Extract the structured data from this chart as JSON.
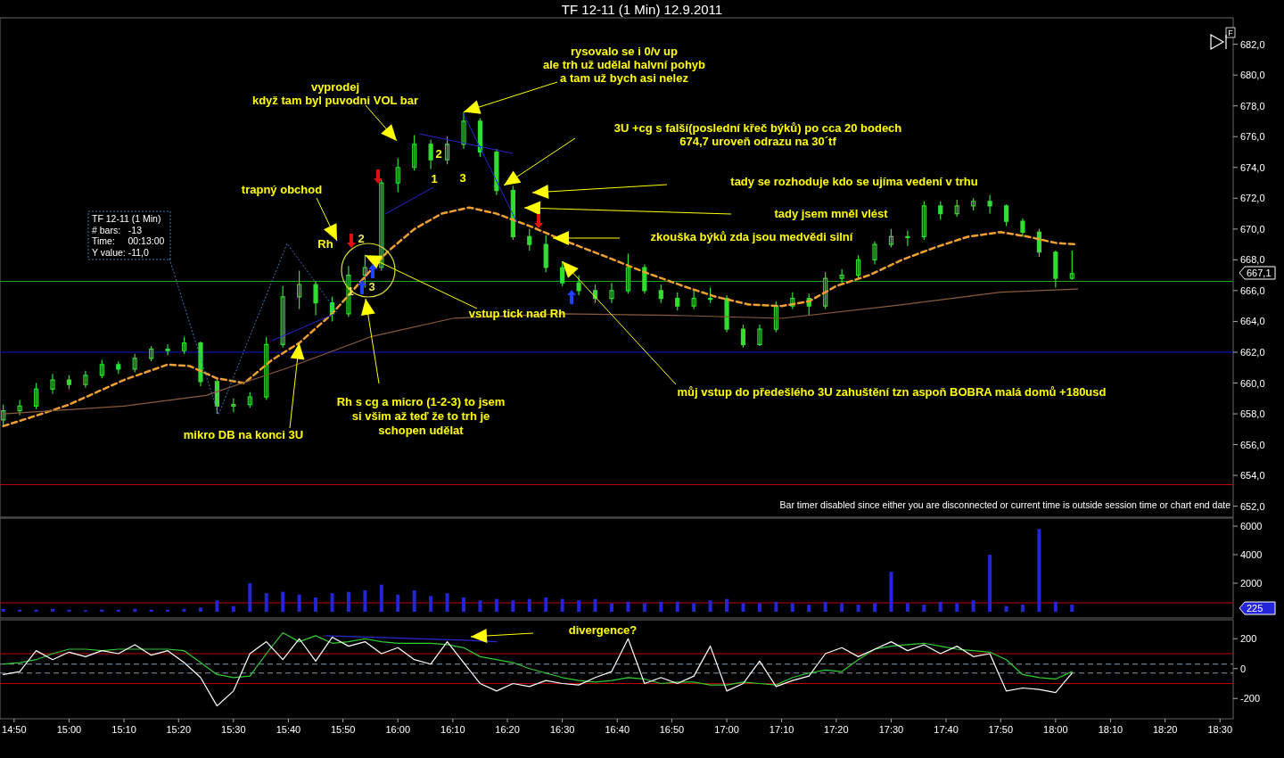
{
  "chart_data": [
    {
      "type": "candlestick",
      "title": "TF 12-11 (1 Min)  12.9.2011",
      "color": "#33dd33",
      "x": [
        14.8,
        14.85,
        14.9,
        14.95,
        15.0,
        15.05,
        15.1,
        15.15,
        15.2,
        15.25,
        15.3,
        15.35,
        15.4,
        15.45,
        15.5,
        15.55,
        15.6,
        15.65,
        15.7,
        15.75,
        15.8,
        15.85,
        15.9,
        15.95,
        16.0,
        16.05,
        16.1,
        16.15,
        16.2,
        16.25,
        16.3,
        16.35,
        16.4,
        16.45,
        16.5,
        16.55,
        16.6,
        16.65,
        16.7,
        16.75,
        16.8,
        16.85,
        16.9,
        16.95,
        17.0,
        17.05,
        17.1,
        17.15,
        17.2,
        17.25,
        17.3,
        17.35,
        17.4,
        17.45,
        17.5,
        17.55,
        17.6,
        17.65,
        17.7,
        17.75,
        17.8,
        17.85,
        17.9,
        17.95,
        18.0,
        18.05
      ],
      "ohlc": [
        [
          657.6,
          658.6,
          657.2,
          658.2
        ],
        [
          658.2,
          658.9,
          657.9,
          658.5
        ],
        [
          658.5,
          660.0,
          658.3,
          659.6
        ],
        [
          659.6,
          660.6,
          659.3,
          660.2
        ],
        [
          660.2,
          660.5,
          659.6,
          659.9
        ],
        [
          659.9,
          660.8,
          659.7,
          660.5
        ],
        [
          660.5,
          661.5,
          660.3,
          661.2
        ],
        [
          661.2,
          661.4,
          660.6,
          660.9
        ],
        [
          660.9,
          661.9,
          660.7,
          661.6
        ],
        [
          661.6,
          662.4,
          661.4,
          662.2
        ],
        [
          662.2,
          662.5,
          661.8,
          662.1
        ],
        [
          662.1,
          663.0,
          661.9,
          662.6
        ],
        [
          662.6,
          662.7,
          659.8,
          660.1
        ],
        [
          660.1,
          660.3,
          658.0,
          658.5
        ],
        [
          658.5,
          659.0,
          658.1,
          658.6
        ],
        [
          658.6,
          659.4,
          658.4,
          659.1
        ],
        [
          659.1,
          663.0,
          658.9,
          662.5
        ],
        [
          662.5,
          666.3,
          662.3,
          665.6
        ],
        [
          665.6,
          667.3,
          664.8,
          666.4
        ],
        [
          666.4,
          666.6,
          664.4,
          665.2
        ],
        [
          665.2,
          665.6,
          664.0,
          664.5
        ],
        [
          664.5,
          667.6,
          664.3,
          667.0
        ],
        [
          667.0,
          668.3,
          666.2,
          667.5
        ],
        [
          667.5,
          673.2,
          667.3,
          673.0
        ],
        [
          673.0,
          674.6,
          672.4,
          674.0
        ],
        [
          674.0,
          676.1,
          673.8,
          675.5
        ],
        [
          675.5,
          675.8,
          673.9,
          674.5
        ],
        [
          674.5,
          676.0,
          674.2,
          675.5
        ],
        [
          675.5,
          677.6,
          675.2,
          677.0
        ],
        [
          677.0,
          677.2,
          674.7,
          675.0
        ],
        [
          675.0,
          675.2,
          672.2,
          672.5
        ],
        [
          672.5,
          672.8,
          669.3,
          669.5
        ],
        [
          669.5,
          670.0,
          668.6,
          669.0
        ],
        [
          669.0,
          669.6,
          667.2,
          667.5
        ],
        [
          667.5,
          667.9,
          666.3,
          666.5
        ],
        [
          666.5,
          667.0,
          665.7,
          666.0
        ],
        [
          666.0,
          666.4,
          665.2,
          665.5
        ],
        [
          665.5,
          666.5,
          665.2,
          666.0
        ],
        [
          666.0,
          668.4,
          665.8,
          667.5
        ],
        [
          667.5,
          667.7,
          665.8,
          666.0
        ],
        [
          666.0,
          666.4,
          665.2,
          665.5
        ],
        [
          665.5,
          665.9,
          664.7,
          665.0
        ],
        [
          665.0,
          666.1,
          664.8,
          665.5
        ],
        [
          665.5,
          666.2,
          665.2,
          665.5
        ],
        [
          665.5,
          665.7,
          663.3,
          663.5
        ],
        [
          663.5,
          663.8,
          662.3,
          662.5
        ],
        [
          662.5,
          663.8,
          662.4,
          663.5
        ],
        [
          663.5,
          665.3,
          663.3,
          665.0
        ],
        [
          665.0,
          665.9,
          664.8,
          665.5
        ],
        [
          665.5,
          665.8,
          664.4,
          665.0
        ],
        [
          665.0,
          667.2,
          664.8,
          666.8
        ],
        [
          666.8,
          667.4,
          666.5,
          667.0
        ],
        [
          667.0,
          668.3,
          666.8,
          668.0
        ],
        [
          668.0,
          669.2,
          667.7,
          669.0
        ],
        [
          669.0,
          670.0,
          668.8,
          669.5
        ],
        [
          669.5,
          669.9,
          668.9,
          669.5
        ],
        [
          669.5,
          671.8,
          669.3,
          671.5
        ],
        [
          671.5,
          671.8,
          670.6,
          671.0
        ],
        [
          671.0,
          671.9,
          670.8,
          671.5
        ],
        [
          671.5,
          672.0,
          671.2,
          671.8
        ],
        [
          671.8,
          672.2,
          671.0,
          671.5
        ],
        [
          671.5,
          671.6,
          670.2,
          670.5
        ],
        [
          670.5,
          670.7,
          669.5,
          669.8
        ],
        [
          669.8,
          670.0,
          668.2,
          668.5
        ],
        [
          668.5,
          668.6,
          666.2,
          666.8
        ],
        [
          666.8,
          668.6,
          666.7,
          667.1
        ]
      ],
      "series": [
        {
          "type": "line",
          "color": "#f0a030",
          "line_style": "dashed",
          "x": [
            14.8,
            14.917,
            15.0,
            15.167,
            15.3,
            15.367,
            15.45,
            15.533,
            15.617,
            15.7,
            15.8,
            15.883,
            15.967,
            16.05,
            16.133,
            16.217,
            16.3,
            16.4,
            16.5,
            16.633,
            16.75,
            16.867,
            16.967,
            17.067,
            17.167,
            17.25,
            17.333,
            17.433,
            17.533,
            17.633,
            17.733,
            17.833,
            17.917,
            18.0,
            18.067
          ],
          "values": [
            657.2,
            658.0,
            658.6,
            660.2,
            661.2,
            661.1,
            660.3,
            660.0,
            661.5,
            662.6,
            664.5,
            666.5,
            668.5,
            670.0,
            671.0,
            671.4,
            671.0,
            670.2,
            669.3,
            668.2,
            667.2,
            666.3,
            665.6,
            665.1,
            665.0,
            665.3,
            666.3,
            667.0,
            668.0,
            668.8,
            669.5,
            669.8,
            669.5,
            669.1,
            669.0
          ]
        },
        {
          "type": "line",
          "color": "#8b5a3c",
          "x": [
            14.8,
            15.167,
            15.417,
            15.667,
            15.917,
            16.167,
            16.5,
            16.833,
            17.167,
            17.5,
            17.833,
            18.067
          ],
          "values": [
            658.0,
            658.5,
            659.2,
            661.0,
            663.0,
            664.2,
            664.5,
            664.4,
            664.2,
            665.0,
            665.9,
            666.1
          ]
        }
      ],
      "xlim": [
        14.79,
        18.54
      ],
      "ylim": [
        651.4,
        683.6
      ],
      "yticks": [
        {
          "value": 652,
          "label": "652,0"
        },
        {
          "value": 654,
          "label": "654,0"
        },
        {
          "value": 656,
          "label": "656,0"
        },
        {
          "value": 658,
          "label": "658,0"
        },
        {
          "value": 660,
          "label": "660,0"
        },
        {
          "value": 662,
          "label": "662,0"
        },
        {
          "value": 664,
          "label": "664,0"
        },
        {
          "value": 666,
          "label": "666,0"
        },
        {
          "value": 668,
          "label": "668,0"
        },
        {
          "value": 670,
          "label": "670,0"
        },
        {
          "value": 672,
          "label": "672,0"
        },
        {
          "value": 674,
          "label": "674,0"
        },
        {
          "value": 676,
          "label": "676,0"
        },
        {
          "value": 678,
          "label": "678,0"
        },
        {
          "value": 680,
          "label": "680,0"
        },
        {
          "value": 682,
          "label": "682,0"
        }
      ],
      "tick_labels": "y",
      "ref_lines": [
        {
          "axis": "y",
          "value": 666.6,
          "color": "#22aa22"
        },
        {
          "axis": "y",
          "value": 662.0,
          "color": "#1414c8"
        },
        {
          "axis": "y",
          "value": 653.4,
          "color": "#c00000"
        }
      ],
      "annotations": [
        "vyprodej\nkdyž tam byl puvodni VOL bar",
        {
          "text": "rysovalo se i 0/v up\nale trh už udělal halvní pohyb\na tam už bych asi nelez",
          "x": 16.2,
          "y": 677.6
        },
        "3U +cg s falší(poslední křeč býků) po cca 20 bodech\n674,7 uroveň odrazu na 30´tf",
        "tady se rozhoduje kdo se ujíma vedení v trhu",
        "tady jsem mněl vlést",
        "zkouška býků zda jsou medvědi silní",
        "trapný obchod",
        "Rh",
        {
          "text": "vstup tick nad Rh",
          "x": 15.9,
          "y": 668.3
        },
        "Rh s cg a micro (1-2-3) to jsem\nsi všim až teď že to trh je\nschopen udělat",
        {
          "text": "mikro DB na konci 3U",
          "x": 15.7,
          "y": 662.6
        },
        {
          "text": "můj vstup do předešlého 3U zahuštění tzn aspoň BOBRA malá domů +180usd",
          "x": 16.5,
          "y": 667.9
        },
        "Bar timer disabled since either you are disconnected or current time is outside session time or chart end date",
        "TF 12-11 (1 Min)\n# bars:   -13\nTime:     00:13:00\nY value: -11,0",
        "1",
        "2",
        "3",
        "2",
        {
          "text": "1",
          "x": 16.1,
          "y": 673.9
        },
        "3",
        "667,1",
        "F"
      ]
    },
    {
      "type": "bar",
      "color": "#2424d8",
      "x": [
        14.8,
        14.85,
        14.9,
        14.95,
        15.0,
        15.05,
        15.1,
        15.15,
        15.2,
        15.25,
        15.3,
        15.35,
        15.4,
        15.45,
        15.5,
        15.55,
        15.6,
        15.65,
        15.7,
        15.75,
        15.8,
        15.85,
        15.9,
        15.95,
        16.0,
        16.05,
        16.1,
        16.15,
        16.2,
        16.25,
        16.3,
        16.35,
        16.4,
        16.45,
        16.5,
        16.55,
        16.6,
        16.65,
        16.7,
        16.75,
        16.8,
        16.85,
        16.9,
        16.95,
        17.0,
        17.05,
        17.1,
        17.15,
        17.2,
        17.25,
        17.3,
        17.35,
        17.4,
        17.45,
        17.5,
        17.55,
        17.6,
        17.65,
        17.7,
        17.75,
        17.8,
        17.85,
        17.9,
        17.95,
        18.0,
        18.05
      ],
      "values": [
        200,
        150,
        150,
        200,
        150,
        100,
        150,
        150,
        200,
        150,
        150,
        200,
        300,
        800,
        400,
        2000,
        1300,
        1400,
        1200,
        1000,
        1300,
        1400,
        1500,
        1900,
        1200,
        1500,
        1100,
        1300,
        1000,
        800,
        900,
        800,
        900,
        1000,
        900,
        800,
        900,
        600,
        700,
        600,
        700,
        700,
        600,
        800,
        900,
        600,
        600,
        700,
        600,
        500,
        700,
        600,
        500,
        600,
        2800,
        600,
        500,
        700,
        600,
        800,
        4000,
        400,
        500,
        5800,
        700,
        500
      ],
      "xlim": [
        14.79,
        18.54
      ],
      "ylim": [
        0,
        6500
      ],
      "yticks": [
        2000,
        4000,
        6000
      ],
      "tick_labels": "y",
      "ref_lines": [
        {
          "axis": "y",
          "value": 625,
          "color": "#c00000"
        }
      ],
      "annotations": [
        "225"
      ]
    },
    {
      "type": "line",
      "series": [
        {
          "color": "#33cc33",
          "x": [
            14.8,
            14.85,
            14.9,
            14.95,
            15.0,
            15.05,
            15.1,
            15.15,
            15.2,
            15.25,
            15.3,
            15.35,
            15.4,
            15.45,
            15.5,
            15.55,
            15.6,
            15.65,
            15.7,
            15.75,
            15.8,
            15.85,
            15.9,
            15.95,
            16.0,
            16.05,
            16.1,
            16.15,
            16.2,
            16.25,
            16.3,
            16.35,
            16.4,
            16.45,
            16.5,
            16.55,
            16.6,
            16.65,
            16.7,
            16.75,
            16.8,
            16.85,
            16.9,
            16.95,
            17.0,
            17.05,
            17.1,
            17.15,
            17.2,
            17.25,
            17.3,
            17.35,
            17.4,
            17.45,
            17.5,
            17.55,
            17.6,
            17.65,
            17.7,
            17.75,
            17.8,
            17.85,
            17.9,
            17.95,
            18.0,
            18.05
          ],
          "values": [
            30,
            40,
            60,
            100,
            130,
            130,
            120,
            130,
            130,
            130,
            130,
            120,
            40,
            -40,
            -60,
            -50,
            100,
            240,
            180,
            220,
            170,
            180,
            200,
            180,
            170,
            170,
            170,
            160,
            140,
            80,
            60,
            40,
            0,
            -30,
            -60,
            -80,
            -90,
            -80,
            -60,
            -70,
            -100,
            -90,
            -90,
            -110,
            -110,
            -90,
            -100,
            -110,
            -60,
            -30,
            -10,
            -20,
            60,
            130,
            150,
            160,
            170,
            150,
            130,
            120,
            110,
            60,
            -40,
            -60,
            -70,
            -20
          ]
        },
        {
          "color": "#ffffff",
          "x": [
            14.8,
            14.85,
            14.9,
            14.95,
            15.0,
            15.05,
            15.1,
            15.15,
            15.2,
            15.25,
            15.3,
            15.35,
            15.4,
            15.45,
            15.5,
            15.55,
            15.6,
            15.65,
            15.7,
            15.75,
            15.8,
            15.85,
            15.9,
            15.95,
            16.0,
            16.05,
            16.1,
            16.15,
            16.2,
            16.25,
            16.3,
            16.35,
            16.4,
            16.45,
            16.5,
            16.55,
            16.6,
            16.65,
            16.7,
            16.75,
            16.8,
            16.85,
            16.9,
            16.95,
            17.0,
            17.05,
            17.1,
            17.15,
            17.2,
            17.25,
            17.3,
            17.35,
            17.4,
            17.45,
            17.5,
            17.55,
            17.6,
            17.65,
            17.7,
            17.75,
            17.8,
            17.85,
            17.9,
            17.95,
            18.0,
            18.05
          ],
          "values": [
            -40,
            -20,
            120,
            60,
            110,
            80,
            120,
            100,
            160,
            90,
            120,
            40,
            -60,
            -250,
            -150,
            100,
            180,
            60,
            200,
            50,
            210,
            150,
            180,
            100,
            140,
            60,
            30,
            180,
            40,
            -100,
            -150,
            -100,
            -120,
            -80,
            -100,
            -110,
            -60,
            -20,
            200,
            -100,
            -60,
            -100,
            -50,
            150,
            -150,
            -100,
            50,
            -120,
            -80,
            -50,
            100,
            140,
            80,
            130,
            180,
            120,
            160,
            100,
            150,
            80,
            100,
            -150,
            -130,
            -140,
            -160,
            -30
          ]
        },
        {
          "type": "line",
          "color": "#2828d0",
          "x": [
            15.78,
            16.2,
            16.3
          ],
          "values": [
            220,
            190,
            180
          ]
        }
      ],
      "xlim": [
        14.79,
        18.54
      ],
      "ylim": [
        -330,
        315
      ],
      "yticks": [
        -200,
        0,
        200
      ],
      "xticks": [
        {
          "value": 14.833,
          "label": "14:50"
        },
        {
          "value": 15.0,
          "label": "15:00"
        },
        {
          "value": 15.167,
          "label": "15:10"
        },
        {
          "value": 15.333,
          "label": "15:20"
        },
        {
          "value": 15.5,
          "label": "15:30"
        },
        {
          "value": 15.667,
          "label": "15:40"
        },
        {
          "value": 15.833,
          "label": "15:50"
        },
        {
          "value": 16.0,
          "label": "16:00"
        },
        {
          "value": 16.167,
          "label": "16:10"
        },
        {
          "value": 16.333,
          "label": "16:20"
        },
        {
          "value": 16.5,
          "label": "16:30"
        },
        {
          "value": 16.667,
          "label": "16:40"
        },
        {
          "value": 16.833,
          "label": "16:50"
        },
        {
          "value": 17.0,
          "label": "17:00"
        },
        {
          "value": 17.167,
          "label": "17:10"
        },
        {
          "value": 17.333,
          "label": "17:20"
        },
        {
          "value": 17.5,
          "label": "17:30"
        },
        {
          "value": 17.667,
          "label": "17:40"
        },
        {
          "value": 17.833,
          "label": "17:50"
        },
        {
          "value": 18.0,
          "label": "18:00"
        },
        {
          "value": 18.167,
          "label": "18:10"
        },
        {
          "value": 18.333,
          "label": "18:20"
        },
        {
          "value": 18.5,
          "label": "18:30"
        }
      ],
      "ref_lines": [
        {
          "axis": "y",
          "value": 100,
          "color": "#c00000"
        },
        {
          "axis": "y",
          "value": -100,
          "color": "#c00000"
        },
        {
          "axis": "y",
          "value": 30,
          "color": "#8899aa",
          "line_style": "dashed"
        },
        {
          "axis": "y",
          "value": -30,
          "color": "#8899aa",
          "line_style": "dashed"
        }
      ],
      "annotations": [
        "divergence?"
      ]
    }
  ]
}
